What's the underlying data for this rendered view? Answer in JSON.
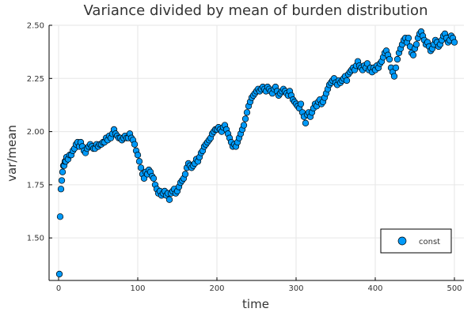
{
  "chart_data": {
    "type": "scatter",
    "title": "Variance divided by mean of burden distribution",
    "xlabel": "time",
    "ylabel": "var/mean",
    "xlim": [
      -12,
      512
    ],
    "ylim": [
      1.3,
      2.5
    ],
    "xticks": [
      0,
      100,
      200,
      300,
      400,
      500
    ],
    "yticks": [
      1.5,
      1.75,
      2.0,
      2.25,
      2.5
    ],
    "xtick_labels": [
      "0",
      "100",
      "200",
      "300",
      "400",
      "500"
    ],
    "ytick_labels": [
      "1.50",
      "1.75",
      "2.00",
      "2.25",
      "2.50"
    ],
    "grid": true,
    "legend": {
      "position": "bottom-right",
      "entries": [
        "const"
      ]
    },
    "series": [
      {
        "name": "const",
        "color": "#009af9",
        "edge_color": "#000000",
        "points": [
          [
            1,
            1.33
          ],
          [
            2,
            1.6
          ],
          [
            3,
            1.73
          ],
          [
            4,
            1.77
          ],
          [
            5,
            1.81
          ],
          [
            6,
            1.84
          ],
          [
            7,
            1.84
          ],
          [
            8,
            1.86
          ],
          [
            9,
            1.86
          ],
          [
            10,
            1.88
          ],
          [
            12,
            1.87
          ],
          [
            14,
            1.89
          ],
          [
            16,
            1.89
          ],
          [
            18,
            1.91
          ],
          [
            20,
            1.92
          ],
          [
            22,
            1.94
          ],
          [
            24,
            1.95
          ],
          [
            26,
            1.93
          ],
          [
            28,
            1.95
          ],
          [
            30,
            1.93
          ],
          [
            32,
            1.91
          ],
          [
            34,
            1.9
          ],
          [
            36,
            1.92
          ],
          [
            38,
            1.93
          ],
          [
            40,
            1.94
          ],
          [
            42,
            1.93
          ],
          [
            44,
            1.92
          ],
          [
            46,
            1.92
          ],
          [
            48,
            1.94
          ],
          [
            50,
            1.93
          ],
          [
            52,
            1.94
          ],
          [
            54,
            1.94
          ],
          [
            56,
            1.95
          ],
          [
            58,
            1.95
          ],
          [
            60,
            1.97
          ],
          [
            62,
            1.96
          ],
          [
            64,
            1.98
          ],
          [
            66,
            1.97
          ],
          [
            68,
            1.99
          ],
          [
            70,
            2.01
          ],
          [
            72,
            1.99
          ],
          [
            74,
            1.98
          ],
          [
            76,
            1.97
          ],
          [
            78,
            1.97
          ],
          [
            80,
            1.96
          ],
          [
            82,
            1.97
          ],
          [
            84,
            1.98
          ],
          [
            86,
            1.97
          ],
          [
            88,
            1.97
          ],
          [
            90,
            1.99
          ],
          [
            92,
            1.97
          ],
          [
            94,
            1.96
          ],
          [
            96,
            1.94
          ],
          [
            98,
            1.91
          ],
          [
            100,
            1.89
          ],
          [
            102,
            1.86
          ],
          [
            104,
            1.83
          ],
          [
            106,
            1.8
          ],
          [
            108,
            1.78
          ],
          [
            110,
            1.81
          ],
          [
            112,
            1.8
          ],
          [
            114,
            1.82
          ],
          [
            116,
            1.81
          ],
          [
            118,
            1.79
          ],
          [
            120,
            1.78
          ],
          [
            122,
            1.75
          ],
          [
            124,
            1.73
          ],
          [
            126,
            1.71
          ],
          [
            128,
            1.72
          ],
          [
            130,
            1.7
          ],
          [
            132,
            1.71
          ],
          [
            134,
            1.72
          ],
          [
            136,
            1.7
          ],
          [
            138,
            1.71
          ],
          [
            140,
            1.68
          ],
          [
            142,
            1.71
          ],
          [
            144,
            1.72
          ],
          [
            146,
            1.73
          ],
          [
            148,
            1.71
          ],
          [
            150,
            1.72
          ],
          [
            152,
            1.74
          ],
          [
            154,
            1.76
          ],
          [
            156,
            1.77
          ],
          [
            158,
            1.78
          ],
          [
            160,
            1.8
          ],
          [
            162,
            1.83
          ],
          [
            164,
            1.85
          ],
          [
            166,
            1.84
          ],
          [
            168,
            1.83
          ],
          [
            170,
            1.84
          ],
          [
            172,
            1.85
          ],
          [
            174,
            1.87
          ],
          [
            176,
            1.86
          ],
          [
            178,
            1.88
          ],
          [
            180,
            1.9
          ],
          [
            182,
            1.91
          ],
          [
            184,
            1.93
          ],
          [
            186,
            1.94
          ],
          [
            188,
            1.95
          ],
          [
            190,
            1.96
          ],
          [
            192,
            1.97
          ],
          [
            194,
            1.99
          ],
          [
            196,
            2.0
          ],
          [
            198,
            2.01
          ],
          [
            200,
            2.01
          ],
          [
            202,
            2.02
          ],
          [
            204,
            2.01
          ],
          [
            206,
            2.0
          ],
          [
            208,
            2.02
          ],
          [
            210,
            2.03
          ],
          [
            212,
            2.01
          ],
          [
            214,
            1.99
          ],
          [
            216,
            1.97
          ],
          [
            218,
            1.95
          ],
          [
            220,
            1.93
          ],
          [
            222,
            1.94
          ],
          [
            224,
            1.93
          ],
          [
            226,
            1.95
          ],
          [
            228,
            1.97
          ],
          [
            230,
            1.99
          ],
          [
            232,
            2.01
          ],
          [
            234,
            2.03
          ],
          [
            236,
            2.06
          ],
          [
            238,
            2.09
          ],
          [
            240,
            2.12
          ],
          [
            242,
            2.14
          ],
          [
            244,
            2.16
          ],
          [
            246,
            2.17
          ],
          [
            248,
            2.18
          ],
          [
            250,
            2.19
          ],
          [
            252,
            2.2
          ],
          [
            254,
            2.19
          ],
          [
            256,
            2.2
          ],
          [
            258,
            2.21
          ],
          [
            260,
            2.2
          ],
          [
            262,
            2.19
          ],
          [
            264,
            2.21
          ],
          [
            266,
            2.2
          ],
          [
            268,
            2.19
          ],
          [
            270,
            2.18
          ],
          [
            272,
            2.2
          ],
          [
            274,
            2.21
          ],
          [
            276,
            2.19
          ],
          [
            278,
            2.17
          ],
          [
            280,
            2.18
          ],
          [
            282,
            2.19
          ],
          [
            284,
            2.2
          ],
          [
            286,
            2.19
          ],
          [
            288,
            2.18
          ],
          [
            290,
            2.17
          ],
          [
            292,
            2.19
          ],
          [
            294,
            2.17
          ],
          [
            296,
            2.15
          ],
          [
            298,
            2.14
          ],
          [
            300,
            2.13
          ],
          [
            302,
            2.12
          ],
          [
            304,
            2.11
          ],
          [
            306,
            2.13
          ],
          [
            308,
            2.09
          ],
          [
            310,
            2.07
          ],
          [
            312,
            2.04
          ],
          [
            314,
            2.08
          ],
          [
            316,
            2.09
          ],
          [
            318,
            2.07
          ],
          [
            320,
            2.09
          ],
          [
            322,
            2.11
          ],
          [
            324,
            2.13
          ],
          [
            326,
            2.12
          ],
          [
            328,
            2.14
          ],
          [
            330,
            2.15
          ],
          [
            332,
            2.13
          ],
          [
            334,
            2.14
          ],
          [
            336,
            2.16
          ],
          [
            338,
            2.18
          ],
          [
            340,
            2.2
          ],
          [
            342,
            2.22
          ],
          [
            344,
            2.23
          ],
          [
            346,
            2.24
          ],
          [
            348,
            2.25
          ],
          [
            350,
            2.23
          ],
          [
            352,
            2.22
          ],
          [
            354,
            2.24
          ],
          [
            356,
            2.23
          ],
          [
            358,
            2.24
          ],
          [
            360,
            2.25
          ],
          [
            362,
            2.26
          ],
          [
            364,
            2.24
          ],
          [
            366,
            2.27
          ],
          [
            368,
            2.28
          ],
          [
            370,
            2.29
          ],
          [
            372,
            2.3
          ],
          [
            374,
            2.29
          ],
          [
            376,
            2.31
          ],
          [
            378,
            2.33
          ],
          [
            380,
            2.31
          ],
          [
            382,
            2.3
          ],
          [
            384,
            2.29
          ],
          [
            386,
            2.31
          ],
          [
            388,
            2.3
          ],
          [
            390,
            2.32
          ],
          [
            392,
            2.29
          ],
          [
            394,
            2.3
          ],
          [
            396,
            2.28
          ],
          [
            398,
            2.3
          ],
          [
            400,
            2.29
          ],
          [
            402,
            2.31
          ],
          [
            404,
            2.3
          ],
          [
            406,
            2.32
          ],
          [
            408,
            2.33
          ],
          [
            410,
            2.35
          ],
          [
            412,
            2.37
          ],
          [
            414,
            2.38
          ],
          [
            416,
            2.36
          ],
          [
            418,
            2.34
          ],
          [
            420,
            2.3
          ],
          [
            422,
            2.28
          ],
          [
            424,
            2.26
          ],
          [
            426,
            2.3
          ],
          [
            428,
            2.34
          ],
          [
            430,
            2.37
          ],
          [
            432,
            2.39
          ],
          [
            434,
            2.41
          ],
          [
            436,
            2.43
          ],
          [
            438,
            2.44
          ],
          [
            440,
            2.42
          ],
          [
            442,
            2.44
          ],
          [
            444,
            2.4
          ],
          [
            446,
            2.37
          ],
          [
            448,
            2.36
          ],
          [
            450,
            2.39
          ],
          [
            452,
            2.41
          ],
          [
            454,
            2.44
          ],
          [
            456,
            2.46
          ],
          [
            458,
            2.47
          ],
          [
            460,
            2.45
          ],
          [
            462,
            2.43
          ],
          [
            464,
            2.41
          ],
          [
            466,
            2.42
          ],
          [
            468,
            2.4
          ],
          [
            470,
            2.38
          ],
          [
            472,
            2.39
          ],
          [
            474,
            2.41
          ],
          [
            476,
            2.43
          ],
          [
            478,
            2.42
          ],
          [
            480,
            2.4
          ],
          [
            482,
            2.41
          ],
          [
            484,
            2.43
          ],
          [
            486,
            2.45
          ],
          [
            488,
            2.46
          ],
          [
            490,
            2.44
          ],
          [
            492,
            2.42
          ],
          [
            494,
            2.43
          ],
          [
            496,
            2.45
          ],
          [
            498,
            2.44
          ],
          [
            500,
            2.42
          ]
        ]
      }
    ]
  }
}
